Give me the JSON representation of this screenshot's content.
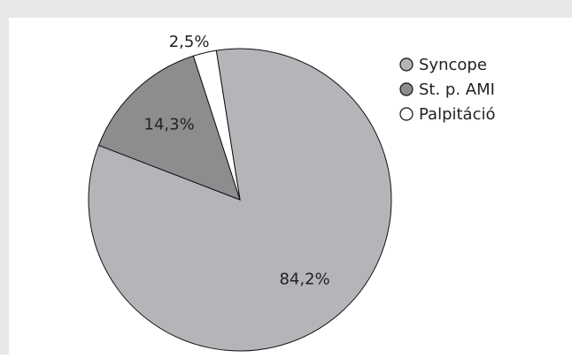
{
  "chart_data": {
    "type": "pie",
    "categories": [
      "Syncope",
      "St. p. AMI",
      "Palpitáció"
    ],
    "values": [
      84.2,
      14.3,
      2.5
    ],
    "value_labels": [
      "84,2%",
      "14,3%",
      "2,5%"
    ],
    "colors": [
      "#b3b5b8",
      "#8c8d8f",
      "#ffffff"
    ],
    "legend": "right"
  }
}
